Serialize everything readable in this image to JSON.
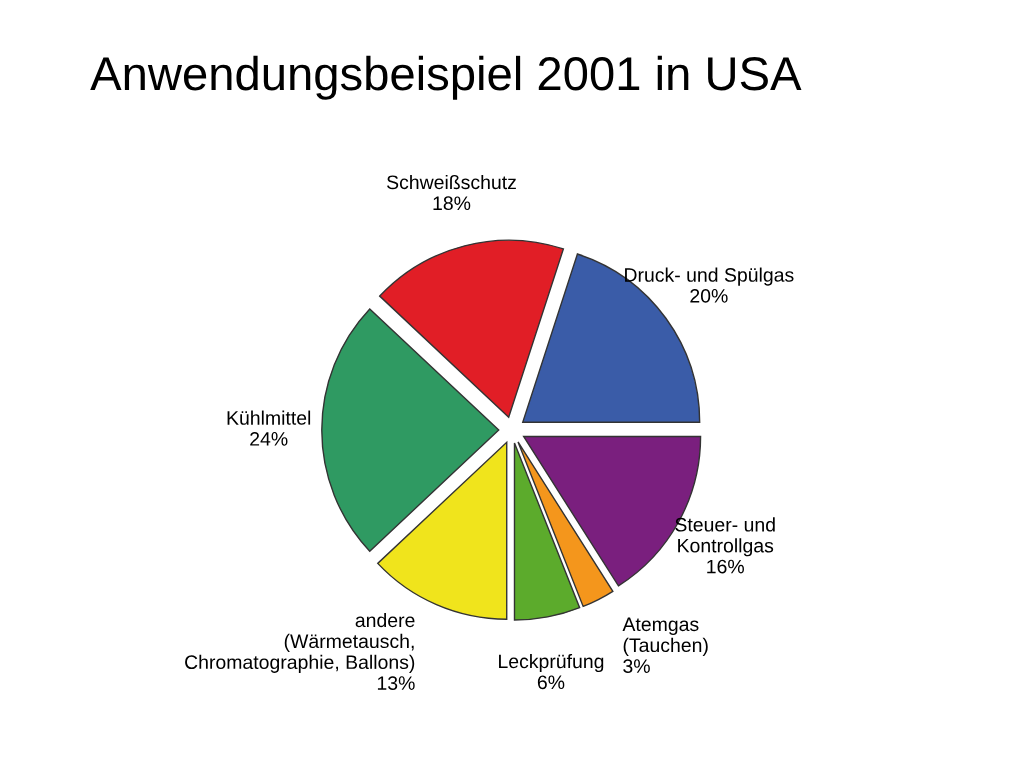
{
  "chart_data": {
    "type": "pie",
    "title": "Anwendungsbeispiel 2001 in USA",
    "categories": [
      "Druck- und Spülgas",
      "Steuer- und\nKontrollgas",
      "Atemgas\n(Tauchen)",
      "Leckprüfung",
      "andere\n(Wärmetausch,\nChromatographie, Ballons)",
      "Kühlmittel",
      "Schweißschutz"
    ],
    "values": [
      20,
      16,
      3,
      6,
      13,
      24,
      18
    ],
    "value_labels": [
      "20%",
      "16%",
      "3%",
      "6%",
      "13%",
      "24%",
      "18%"
    ],
    "colors": [
      "#3a5ca8",
      "#7a1f7e",
      "#f4961c",
      "#5cab2c",
      "#f0e41c",
      "#2f9a62",
      "#e11e26"
    ],
    "legend": false
  }
}
